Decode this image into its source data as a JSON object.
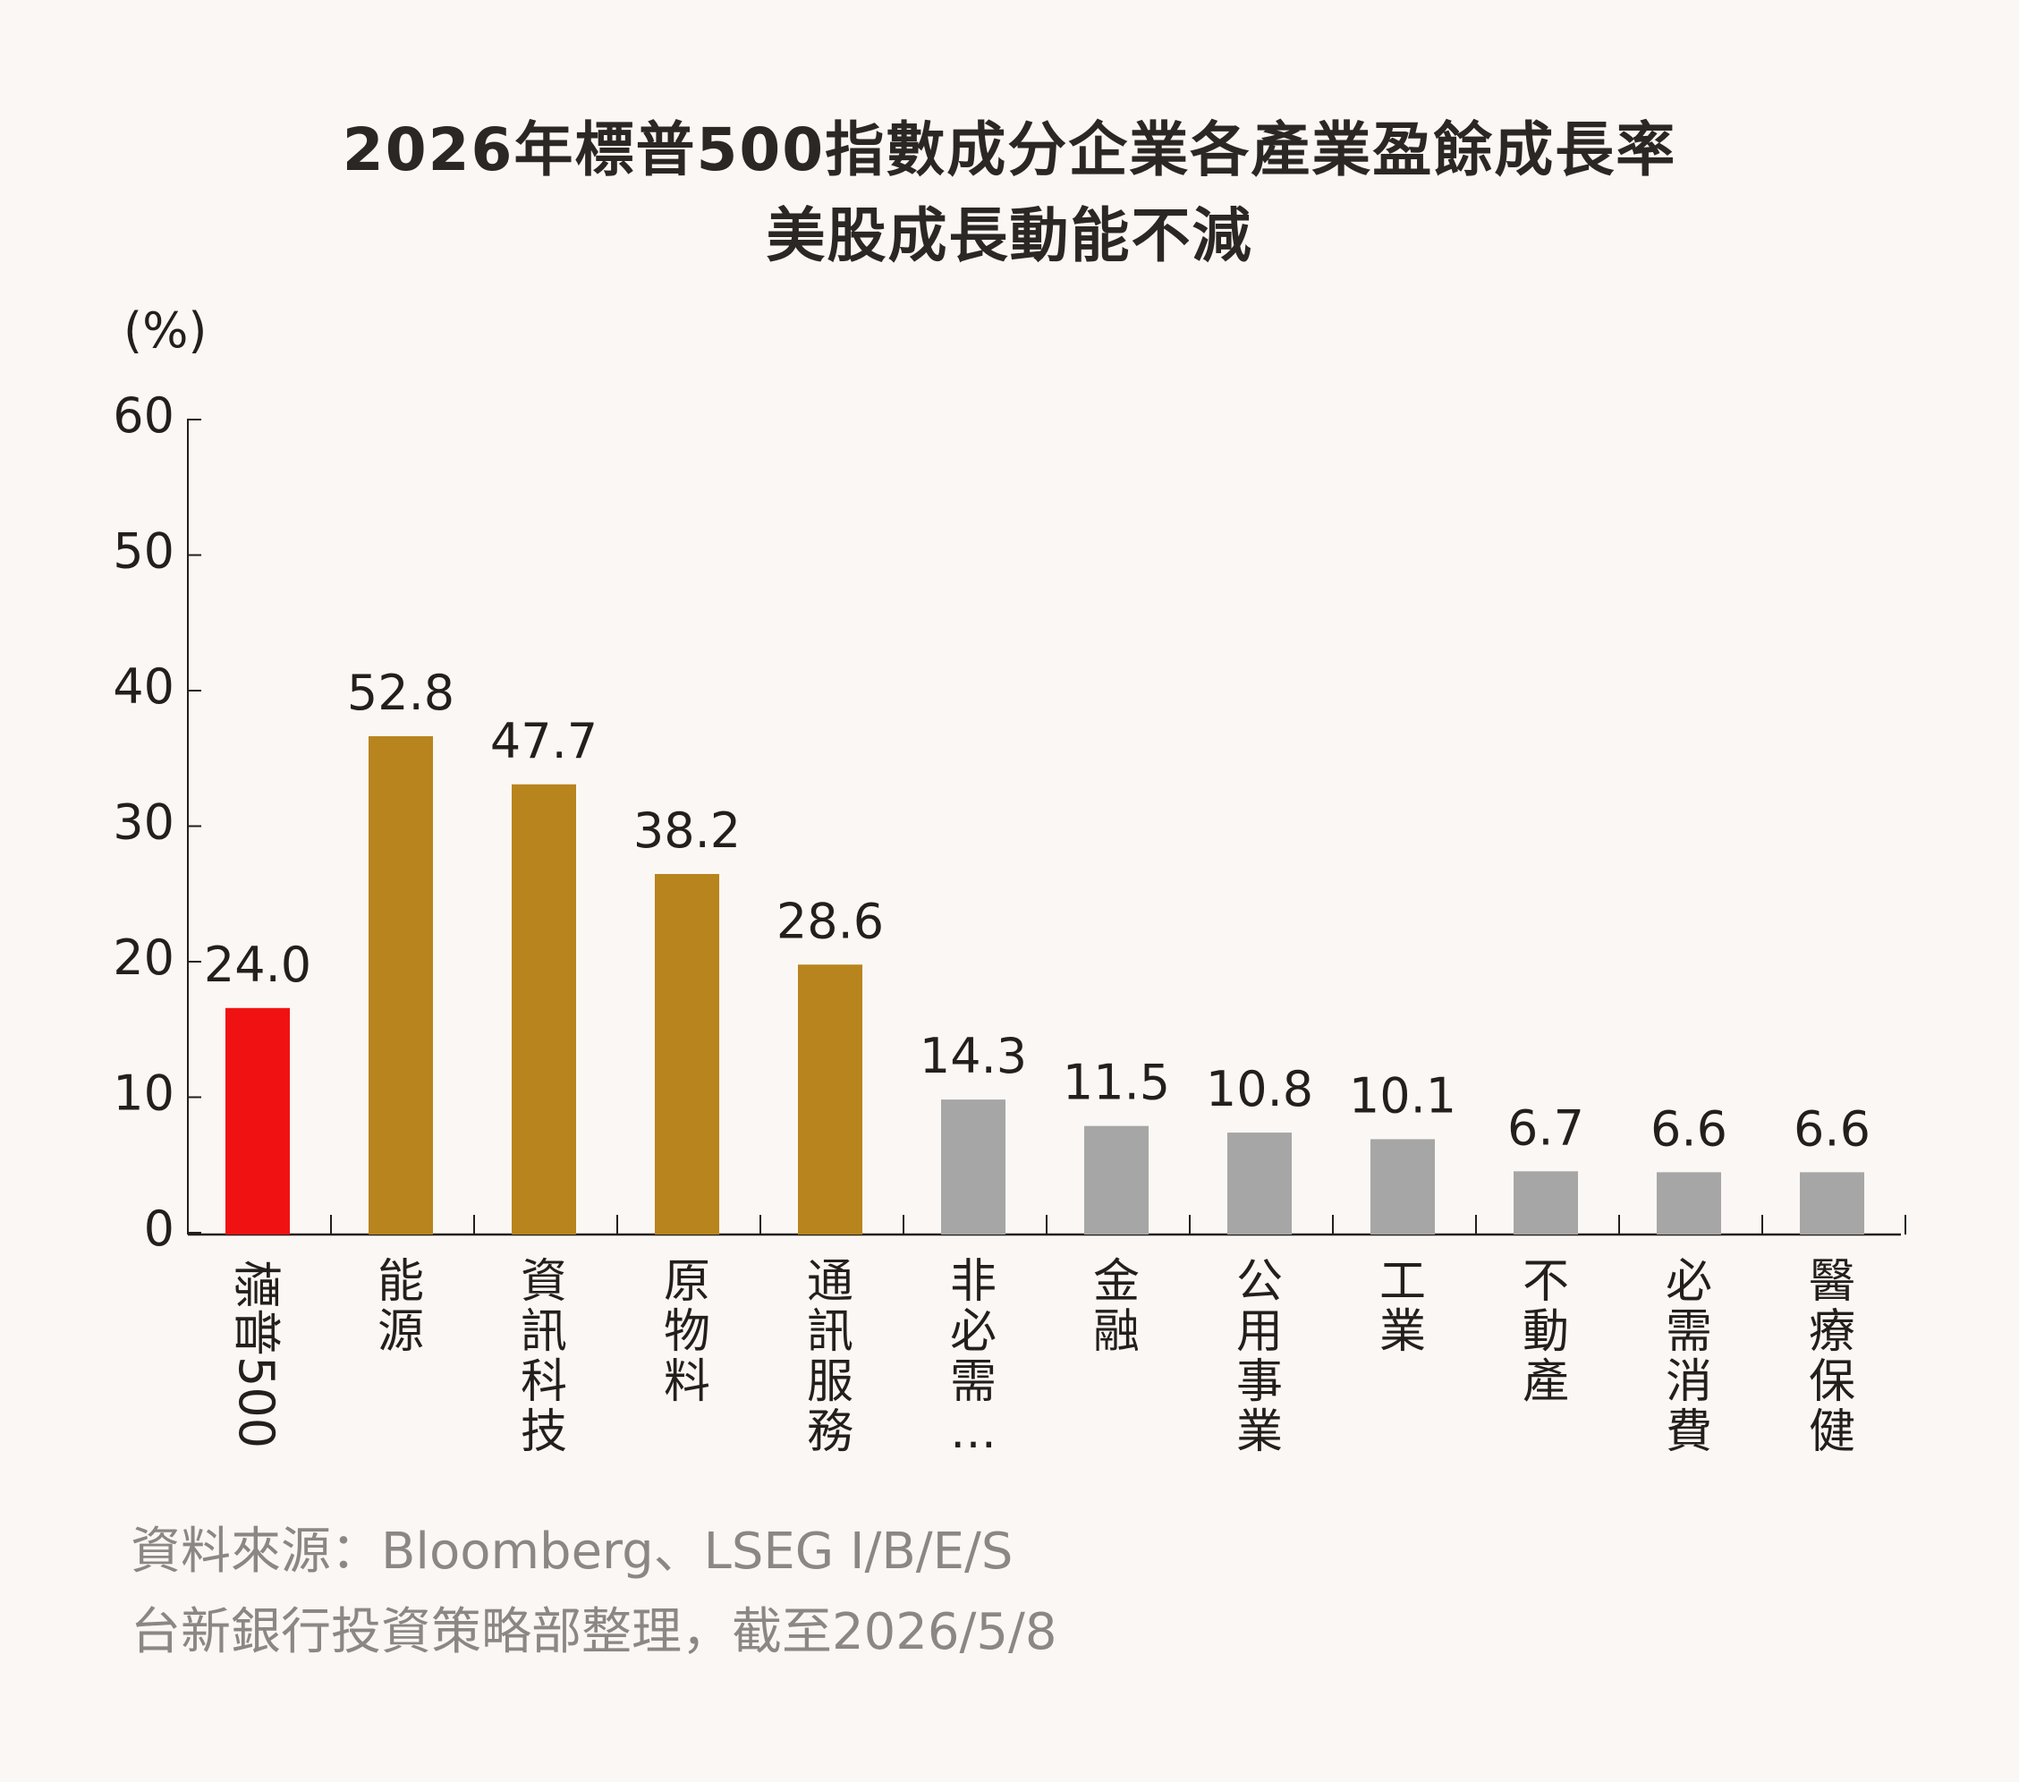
{
  "header": {
    "title": "2026年標普500指數成分企業各產業盈餘成長率",
    "subtitle": "美股成長動能不減"
  },
  "footer": {
    "source_line1": "資料來源：Bloomberg、LSEG I/B/E/S",
    "source_line2": "台新銀行投資策略部整理，截至2026/5/8"
  },
  "colors": {
    "background": "#fbf7f4",
    "highlight": "#f01212",
    "top_sectors": "#b8841d",
    "other_sectors": "#a6a6a6",
    "axis": "#231f1c",
    "source_text": "#8b8784"
  },
  "chart_data": {
    "type": "bar",
    "ylabel": "(%)",
    "xlabel": "",
    "ylim": [
      0,
      60
    ],
    "y_tick_labels": [
      "60",
      "50",
      "40",
      "30",
      "20",
      "10",
      "0"
    ],
    "grid": false,
    "categories": [
      "標普500",
      "能源",
      "資訊科技",
      "原物料",
      "通訊服務",
      "非必需…",
      "金融",
      "公用事業",
      "工業",
      "不動產",
      "必需消費",
      "醫療保健"
    ],
    "values": [
      24.0,
      52.8,
      47.7,
      38.2,
      28.6,
      14.3,
      11.5,
      10.8,
      10.1,
      6.7,
      6.6,
      6.6
    ],
    "value_labels": [
      "24.0",
      "52.8",
      "47.7",
      "38.2",
      "28.6",
      "14.3",
      "11.5",
      "10.8",
      "10.1",
      "6.7",
      "6.6",
      "6.6"
    ],
    "bar_colors": [
      "#f01212",
      "#b8841d",
      "#b8841d",
      "#b8841d",
      "#b8841d",
      "#a6a6a6",
      "#a6a6a6",
      "#a6a6a6",
      "#a6a6a6",
      "#a6a6a6",
      "#a6a6a6",
      "#a6a6a6"
    ]
  }
}
